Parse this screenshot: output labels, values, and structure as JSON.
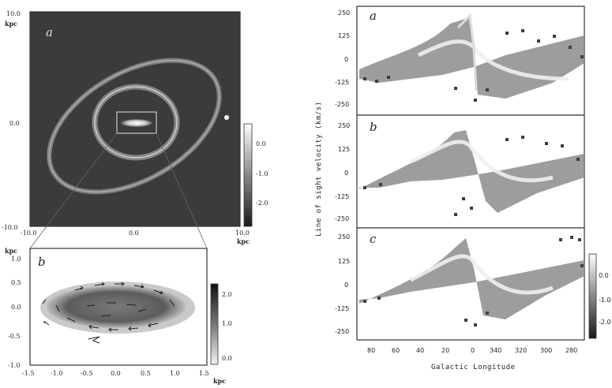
{
  "panel_labels": {
    "a_left": "a",
    "b_left": "b",
    "a_right": "a",
    "b_right": "b",
    "c_right": "c"
  },
  "units": {
    "kpc": "kpc"
  },
  "left_top": {
    "y_ticks": [
      "10.0",
      "0.0",
      "-10.0"
    ],
    "x_ticks": [
      "-10.0",
      "0.0",
      "10.0"
    ],
    "colorbar_ticks": [
      "0.0",
      "-1.0",
      "-2.0"
    ]
  },
  "left_bottom": {
    "y_ticks": [
      "1.0",
      "0.5",
      "0.0",
      "-0.5",
      "-1.0"
    ],
    "x_ticks": [
      "-1.5",
      "-1.0",
      "-0.5",
      "0.0",
      "0.5",
      "1.0",
      "1.5"
    ],
    "colorbar_ticks": [
      "2.0",
      "1.0",
      "0.0"
    ]
  },
  "right": {
    "y_title": "Line of sight velocity (km/s)",
    "x_title": "Galactic Longitude",
    "y_ticks": [
      "250",
      "125",
      "0",
      "-125",
      "-250"
    ],
    "x_ticks": [
      "80",
      "60",
      "40",
      "20",
      "0",
      "340",
      "320",
      "300",
      "280"
    ],
    "colorbar_ticks": [
      "0.0",
      "-1.0",
      "-2.0"
    ]
  },
  "colors": {
    "frame": "#333333",
    "dark_bg": "#3a3a3a",
    "marker": "#3d3d3d"
  }
}
